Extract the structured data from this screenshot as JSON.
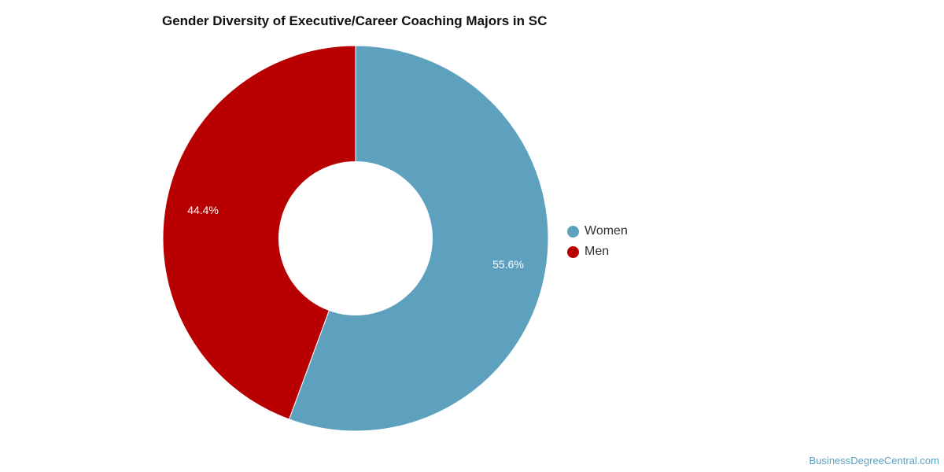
{
  "chart_data": {
    "type": "pie",
    "title": "Gender Diversity of Executive/Career Coaching Majors in SC",
    "donut": true,
    "slices": [
      {
        "name": "Women",
        "value": 55.6,
        "label": "55.6%",
        "color": "#5da1bf"
      },
      {
        "name": "Men",
        "value": 44.4,
        "label": "44.4%",
        "color": "#b90000"
      }
    ],
    "legend_position": "right"
  },
  "credit": "BusinessDegreeCentral.com"
}
